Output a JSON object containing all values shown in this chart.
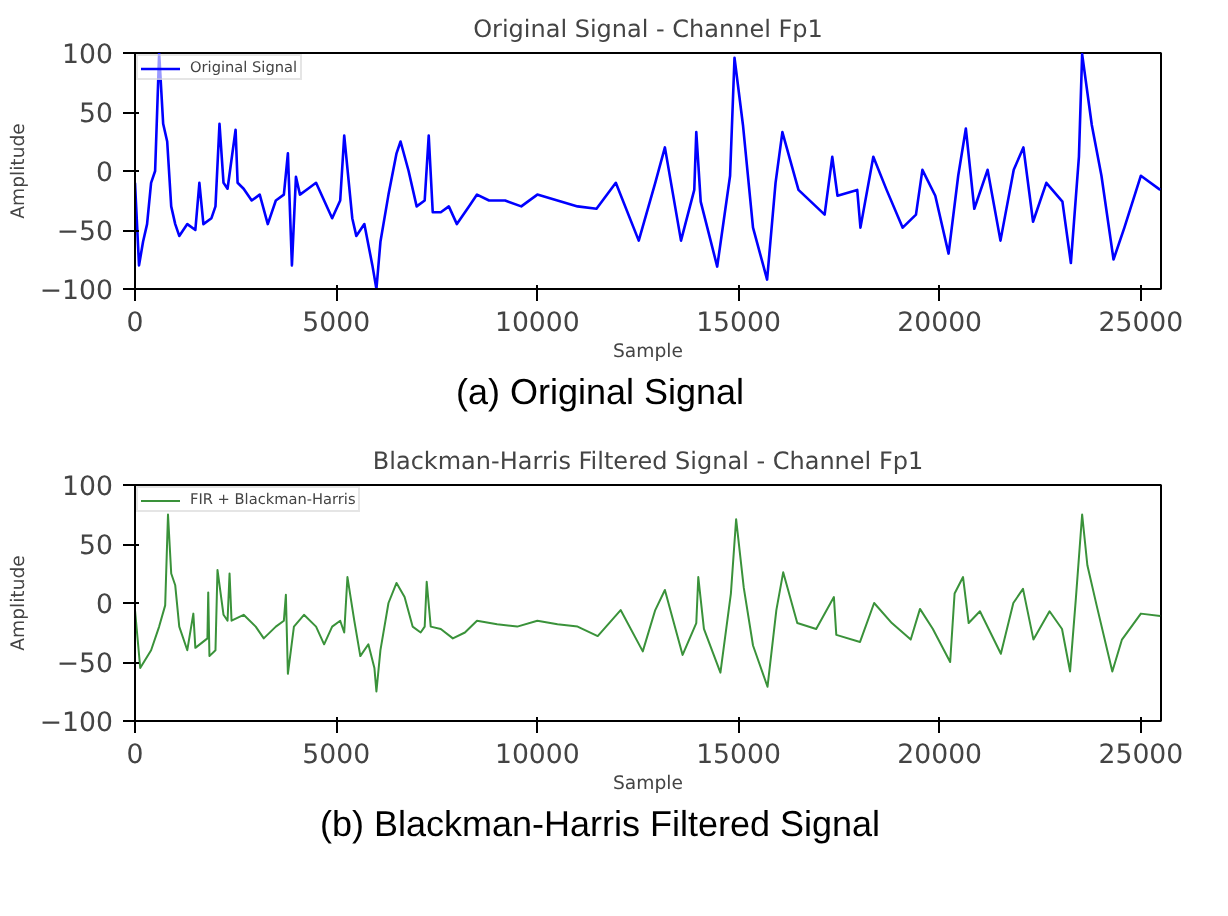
{
  "chart_data": [
    {
      "type": "line",
      "title": "Original Signal - Channel Fp1",
      "xlabel": "Sample",
      "ylabel": "Amplitude",
      "xlim": [
        0,
        25500
      ],
      "ylim": [
        -100,
        100
      ],
      "xticks": [
        0,
        5000,
        10000,
        15000,
        20000,
        25000
      ],
      "yticks": [
        -100,
        -50,
        0,
        50,
        100
      ],
      "grid": false,
      "legend": "top left",
      "annotations": [
        "(a)  Original Signal"
      ],
      "x": [
        0,
        100,
        200,
        300,
        400,
        500,
        600,
        700,
        800,
        900,
        1000,
        1100,
        1300,
        1500,
        1600,
        1700,
        1900,
        2000,
        2100,
        2200,
        2300,
        2500,
        2550,
        2700,
        2900,
        3100,
        3300,
        3500,
        3700,
        3800,
        3900,
        4000,
        4100,
        4300,
        4500,
        4700,
        4900,
        5100,
        5200,
        5400,
        5500,
        5700,
        5900,
        6000,
        6100,
        6300,
        6500,
        6600,
        6800,
        7000,
        7200,
        7300,
        7400,
        7600,
        7800,
        8000,
        8300,
        8500,
        8800,
        9200,
        9600,
        10000,
        10500,
        11000,
        11470,
        11950,
        12520,
        12930,
        13170,
        13570,
        13900,
        13950,
        14060,
        14470,
        14790,
        14900,
        15110,
        15360,
        15710,
        15920,
        16090,
        16490,
        17140,
        17330,
        17460,
        17950,
        18030,
        18350,
        18680,
        19080,
        19410,
        19570,
        19890,
        20220,
        20460,
        20650,
        20860,
        21190,
        21510,
        21840,
        22080,
        22320,
        22650,
        23050,
        23260,
        23460,
        23540,
        23780,
        24020,
        24320,
        24590,
        25000,
        25480
      ],
      "series": [
        {
          "name": "Original Signal",
          "color": "#0000ff",
          "values": [
            -10,
            -80,
            -60,
            -45,
            -10,
            0,
            100,
            40,
            25,
            -30,
            -45,
            -55,
            -45,
            -50,
            -10,
            -45,
            -40,
            -30,
            40,
            -10,
            -15,
            35,
            -10,
            -15,
            -25,
            -20,
            -45,
            -25,
            -20,
            15,
            -80,
            -5,
            -20,
            -15,
            -10,
            -25,
            -40,
            -25,
            30,
            -40,
            -55,
            -45,
            -80,
            -100,
            -60,
            -20,
            15,
            25,
            0,
            -30,
            -25,
            30,
            -35,
            -35,
            -30,
            -45,
            -30,
            -20,
            -25,
            -25,
            -30,
            -20,
            -25,
            -30,
            -32,
            -10,
            -59,
            -10,
            20,
            -59,
            -16,
            33,
            -26,
            -81,
            -4,
            96,
            39,
            -48,
            -92,
            -10,
            33,
            -16,
            -37,
            12,
            -21,
            -16,
            -48,
            12,
            -16,
            -48,
            -37,
            1,
            -21,
            -70,
            -4,
            36,
            -32,
            1,
            -59,
            1,
            20,
            -43,
            -10,
            -26,
            -78,
            12,
            99,
            39,
            -4,
            -75,
            -48,
            -4,
            -16
          ]
        }
      ]
    },
    {
      "type": "line",
      "title": "Blackman-Harris Filtered Signal - Channel Fp1",
      "xlabel": "Sample",
      "ylabel": "Amplitude",
      "xlim": [
        0,
        25500
      ],
      "ylim": [
        -100,
        100
      ],
      "xticks": [
        0,
        5000,
        10000,
        15000,
        20000,
        25000
      ],
      "yticks": [
        -100,
        -50,
        0,
        50,
        100
      ],
      "grid": false,
      "legend": "top left",
      "annotations": [
        "(b)  Blackman-Harris Filtered Signal"
      ],
      "x": [
        0,
        130,
        400,
        600,
        750,
        820,
        900,
        1000,
        1100,
        1300,
        1450,
        1500,
        1800,
        1820,
        1850,
        2000,
        2050,
        2200,
        2300,
        2350,
        2400,
        2700,
        3000,
        3200,
        3500,
        3700,
        3750,
        3800,
        3950,
        4200,
        4500,
        4700,
        4900,
        5100,
        5200,
        5280,
        5450,
        5600,
        5800,
        5950,
        6000,
        6100,
        6300,
        6500,
        6700,
        6900,
        7100,
        7200,
        7250,
        7350,
        7600,
        7900,
        8200,
        8500,
        9000,
        9500,
        10000,
        10500,
        11000,
        11500,
        12070,
        12620,
        12930,
        13170,
        13610,
        13950,
        14000,
        14140,
        14550,
        14810,
        14940,
        15130,
        15360,
        15720,
        15940,
        16110,
        16460,
        16930,
        17370,
        17430,
        18020,
        18370,
        18810,
        19280,
        19510,
        19830,
        20260,
        20370,
        20580,
        20720,
        21000,
        21520,
        21830,
        22070,
        22330,
        22730,
        23040,
        23240,
        23380,
        23540,
        23670,
        23900,
        24290,
        24530,
        25000,
        25480
      ],
      "series": [
        {
          "name": "FIR + Blackman-Harris",
          "color": "#3a923a",
          "values": [
            -6,
            -55,
            -40,
            -20,
            -2,
            75,
            25,
            15,
            -20,
            -40,
            -9,
            -38,
            -30,
            9,
            -45,
            -40,
            28,
            -10,
            -15,
            25,
            -15,
            -10,
            -20,
            -30,
            -20,
            -15,
            7,
            -60,
            -20,
            -10,
            -20,
            -35,
            -20,
            -15,
            -25,
            22,
            -15,
            -45,
            -35,
            -55,
            -75,
            -40,
            0,
            17,
            5,
            -20,
            -25,
            -20,
            18,
            -20,
            -22,
            -30,
            -25,
            -15,
            -18,
            -20,
            -15,
            -18,
            -20,
            -28,
            -6,
            -41,
            -6,
            11,
            -44,
            -17,
            22,
            -22,
            -59,
            8,
            71,
            13,
            -36,
            -71,
            -6,
            26,
            -17,
            -22,
            5,
            -27,
            -33,
            0,
            -17,
            -31,
            -5,
            -22,
            -50,
            8,
            22,
            -17,
            -7,
            -43,
            0,
            12,
            -31,
            -7,
            -22,
            -58,
            2,
            75,
            32,
            -2,
            -58,
            -31,
            -9,
            -11
          ]
        }
      ]
    }
  ]
}
